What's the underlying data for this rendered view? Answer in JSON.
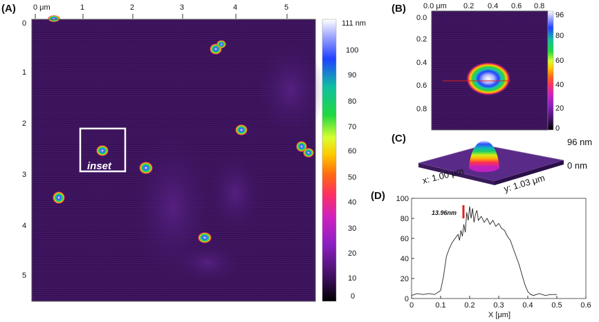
{
  "panels": {
    "a": {
      "label": "(A)"
    },
    "b": {
      "label": "(B)"
    },
    "c": {
      "label": "(C)"
    },
    "d": {
      "label": "(D)"
    }
  },
  "panel_a": {
    "x_unit": "μm",
    "x_ticks": [
      "0 μm",
      "1",
      "2",
      "3",
      "4",
      "5"
    ],
    "y_ticks": [
      "0",
      "1",
      "2",
      "3",
      "4",
      "5"
    ],
    "inset_label": "inset",
    "colorbar_max_label": "111 nm",
    "colorbar_ticks": [
      "100",
      "90",
      "80",
      "70",
      "60",
      "50",
      "40",
      "30",
      "20",
      "10",
      "0"
    ]
  },
  "panel_b": {
    "x_ticks": [
      "0.0 μm",
      "0.2",
      "0.4",
      "0.6",
      "0.8"
    ],
    "y_ticks": [
      "0.0",
      "0.2",
      "0.4",
      "0.6",
      "0.8"
    ],
    "colorbar_ticks": [
      "96",
      "80",
      "60",
      "40",
      "20",
      "0"
    ]
  },
  "panel_c": {
    "z_max": "96 nm",
    "z_min": "0 nm",
    "x_dim": "x: 1.00 μm",
    "y_dim": "y: 1.03 μm"
  },
  "chart_data": {
    "type": "line",
    "xlabel": "X [μm]",
    "ylabel": "",
    "xlim": [
      0,
      0.6
    ],
    "ylim": [
      0,
      100
    ],
    "x_ticks": [
      "0",
      "0.1",
      "0.2",
      "0.3",
      "0.4",
      "0.5",
      "0.6"
    ],
    "y_ticks": [
      "0",
      "20",
      "40",
      "60",
      "80",
      "100"
    ],
    "annotation": "13.96nm",
    "series": [
      {
        "x": [
          0.0,
          0.02,
          0.04,
          0.06,
          0.08,
          0.1,
          0.11,
          0.12,
          0.13,
          0.14,
          0.15,
          0.16,
          0.165,
          0.17,
          0.175,
          0.18,
          0.185,
          0.19,
          0.195,
          0.2,
          0.205,
          0.21,
          0.215,
          0.22,
          0.225,
          0.23,
          0.24,
          0.25,
          0.26,
          0.27,
          0.28,
          0.29,
          0.3,
          0.31,
          0.32,
          0.33,
          0.34,
          0.35,
          0.36,
          0.37,
          0.38,
          0.39,
          0.4,
          0.41,
          0.42,
          0.43,
          0.44,
          0.46,
          0.48,
          0.5
        ],
        "y": [
          3,
          5,
          4,
          5,
          4,
          8,
          22,
          42,
          50,
          56,
          60,
          64,
          58,
          68,
          62,
          74,
          66,
          86,
          78,
          92,
          80,
          90,
          76,
          84,
          88,
          78,
          82,
          76,
          80,
          74,
          78,
          72,
          75,
          70,
          68,
          62,
          58,
          50,
          42,
          34,
          24,
          14,
          7,
          4,
          3,
          4,
          5,
          3,
          4,
          4
        ]
      }
    ]
  }
}
